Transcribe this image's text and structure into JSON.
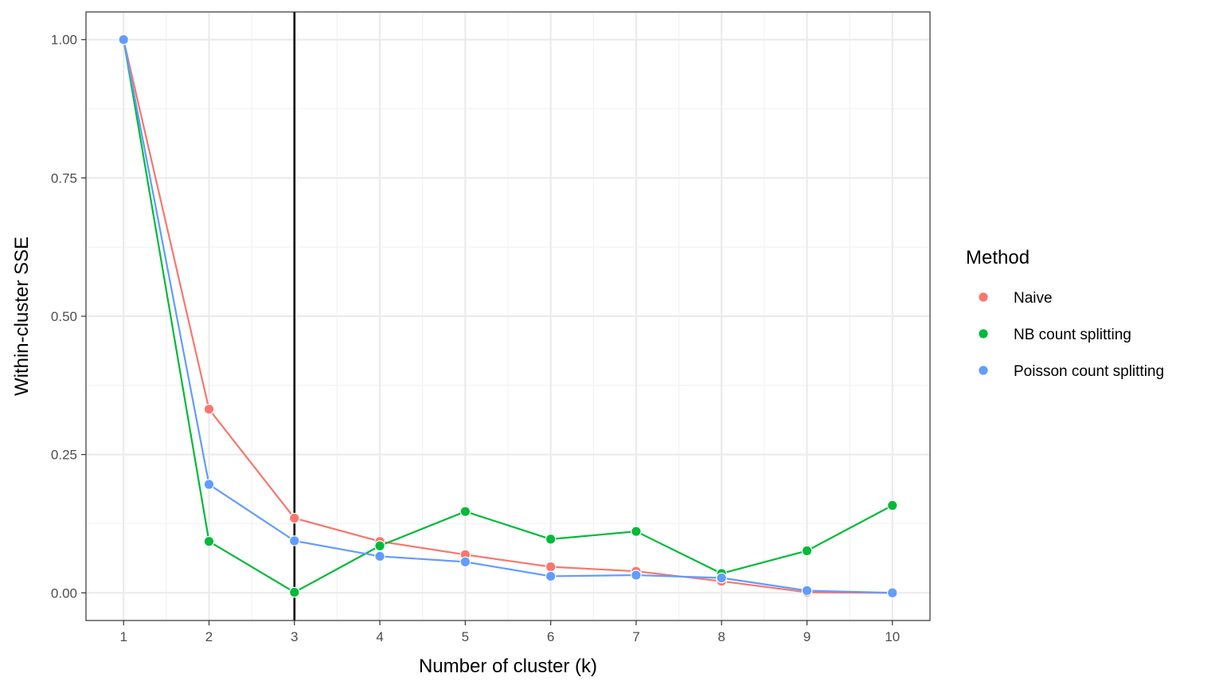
{
  "chart_data": {
    "type": "line",
    "title": "",
    "xlabel": "Number of cluster (k)",
    "ylabel": "Within-cluster SSE",
    "x": [
      1,
      2,
      3,
      4,
      5,
      6,
      7,
      8,
      9,
      10
    ],
    "xlim": [
      0.56,
      10.44
    ],
    "ylim": [
      -0.05,
      1.05
    ],
    "x_ticks": [
      "1",
      "2",
      "3",
      "4",
      "5",
      "6",
      "7",
      "8",
      "9",
      "10"
    ],
    "y_ticks": [
      "0.00",
      "0.25",
      "0.50",
      "0.75",
      "1.00"
    ],
    "y_tick_values": [
      0,
      0.25,
      0.5,
      0.75,
      1.0
    ],
    "grid": true,
    "vline_x": 3,
    "legend": {
      "title": "Method",
      "position": "right"
    },
    "series": [
      {
        "name": "Naive",
        "color": "#F8766D",
        "values": [
          1.0,
          0.332,
          0.135,
          0.093,
          0.069,
          0.047,
          0.039,
          0.021,
          0.001,
          0.0
        ]
      },
      {
        "name": "NB count splitting",
        "color": "#00BA38",
        "values": [
          1.0,
          0.093,
          0.001,
          0.085,
          0.147,
          0.097,
          0.111,
          0.035,
          0.076,
          0.158
        ]
      },
      {
        "name": "Poisson count splitting",
        "color": "#619CFF",
        "values": [
          1.0,
          0.196,
          0.094,
          0.066,
          0.056,
          0.03,
          0.032,
          0.027,
          0.004,
          0.0
        ]
      }
    ]
  }
}
